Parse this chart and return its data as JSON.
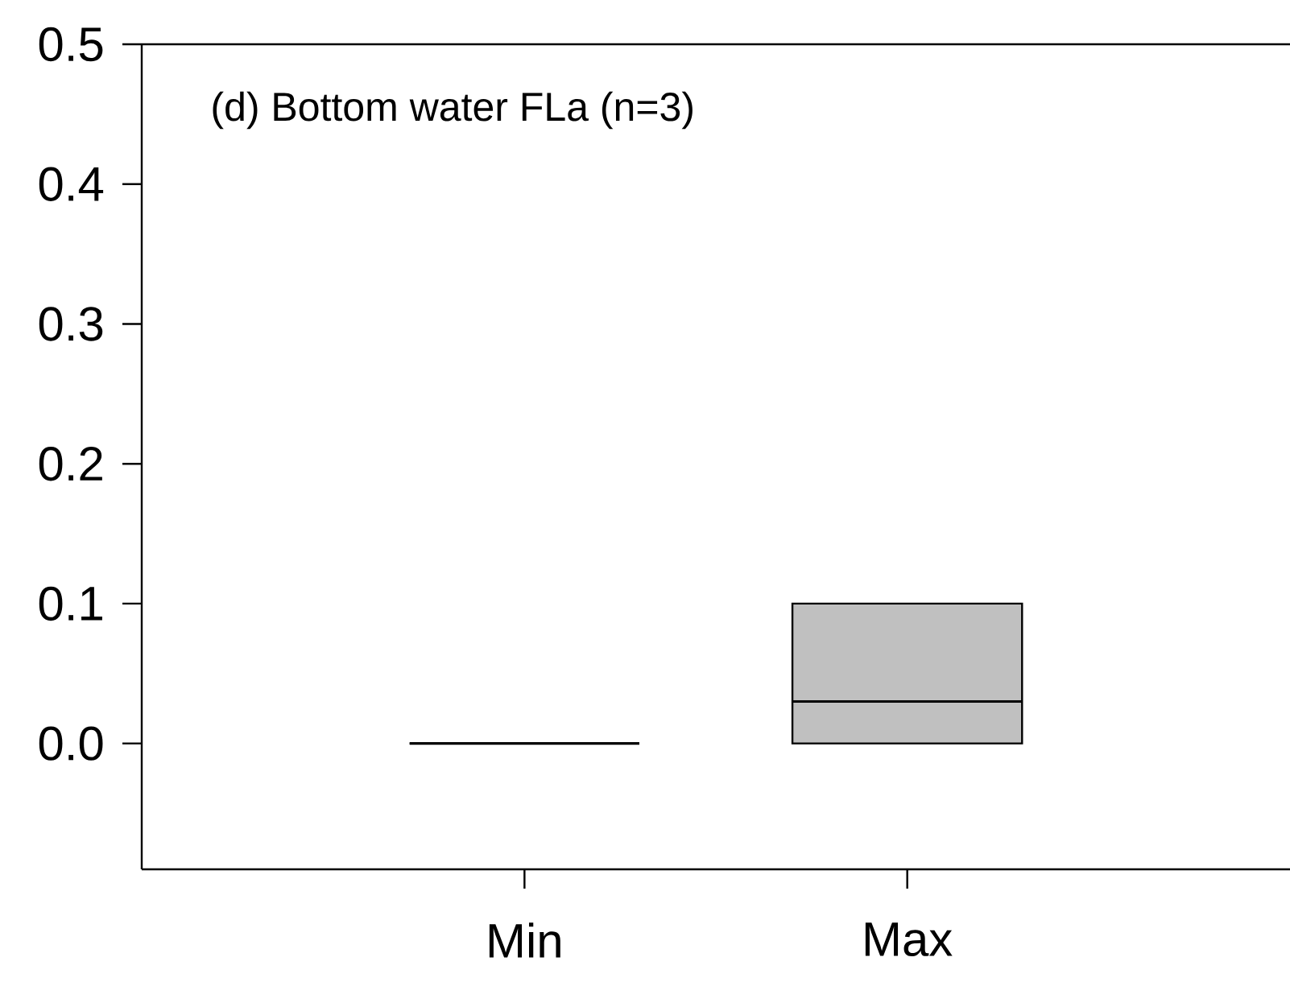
{
  "chart_data": {
    "type": "box",
    "title": "(d) Bottom water FLa (n=3)",
    "categories": [
      "Min",
      "Max"
    ],
    "boxes": [
      {
        "low": 0,
        "q1": 0,
        "median": 0,
        "q3": 0,
        "high": 0
      },
      {
        "low": 0,
        "q1": 0,
        "median": 0.03,
        "q3": 0.1,
        "high": 0.1
      }
    ],
    "colors": [
      "#000000",
      "#c0c0c0"
    ],
    "ylim": [
      -0.09,
      0.5
    ],
    "yticks": [
      {
        "value": 0,
        "label": "0.0"
      },
      0.1,
      0.2,
      0.3,
      0.4,
      0.5
    ],
    "grid": false
  }
}
